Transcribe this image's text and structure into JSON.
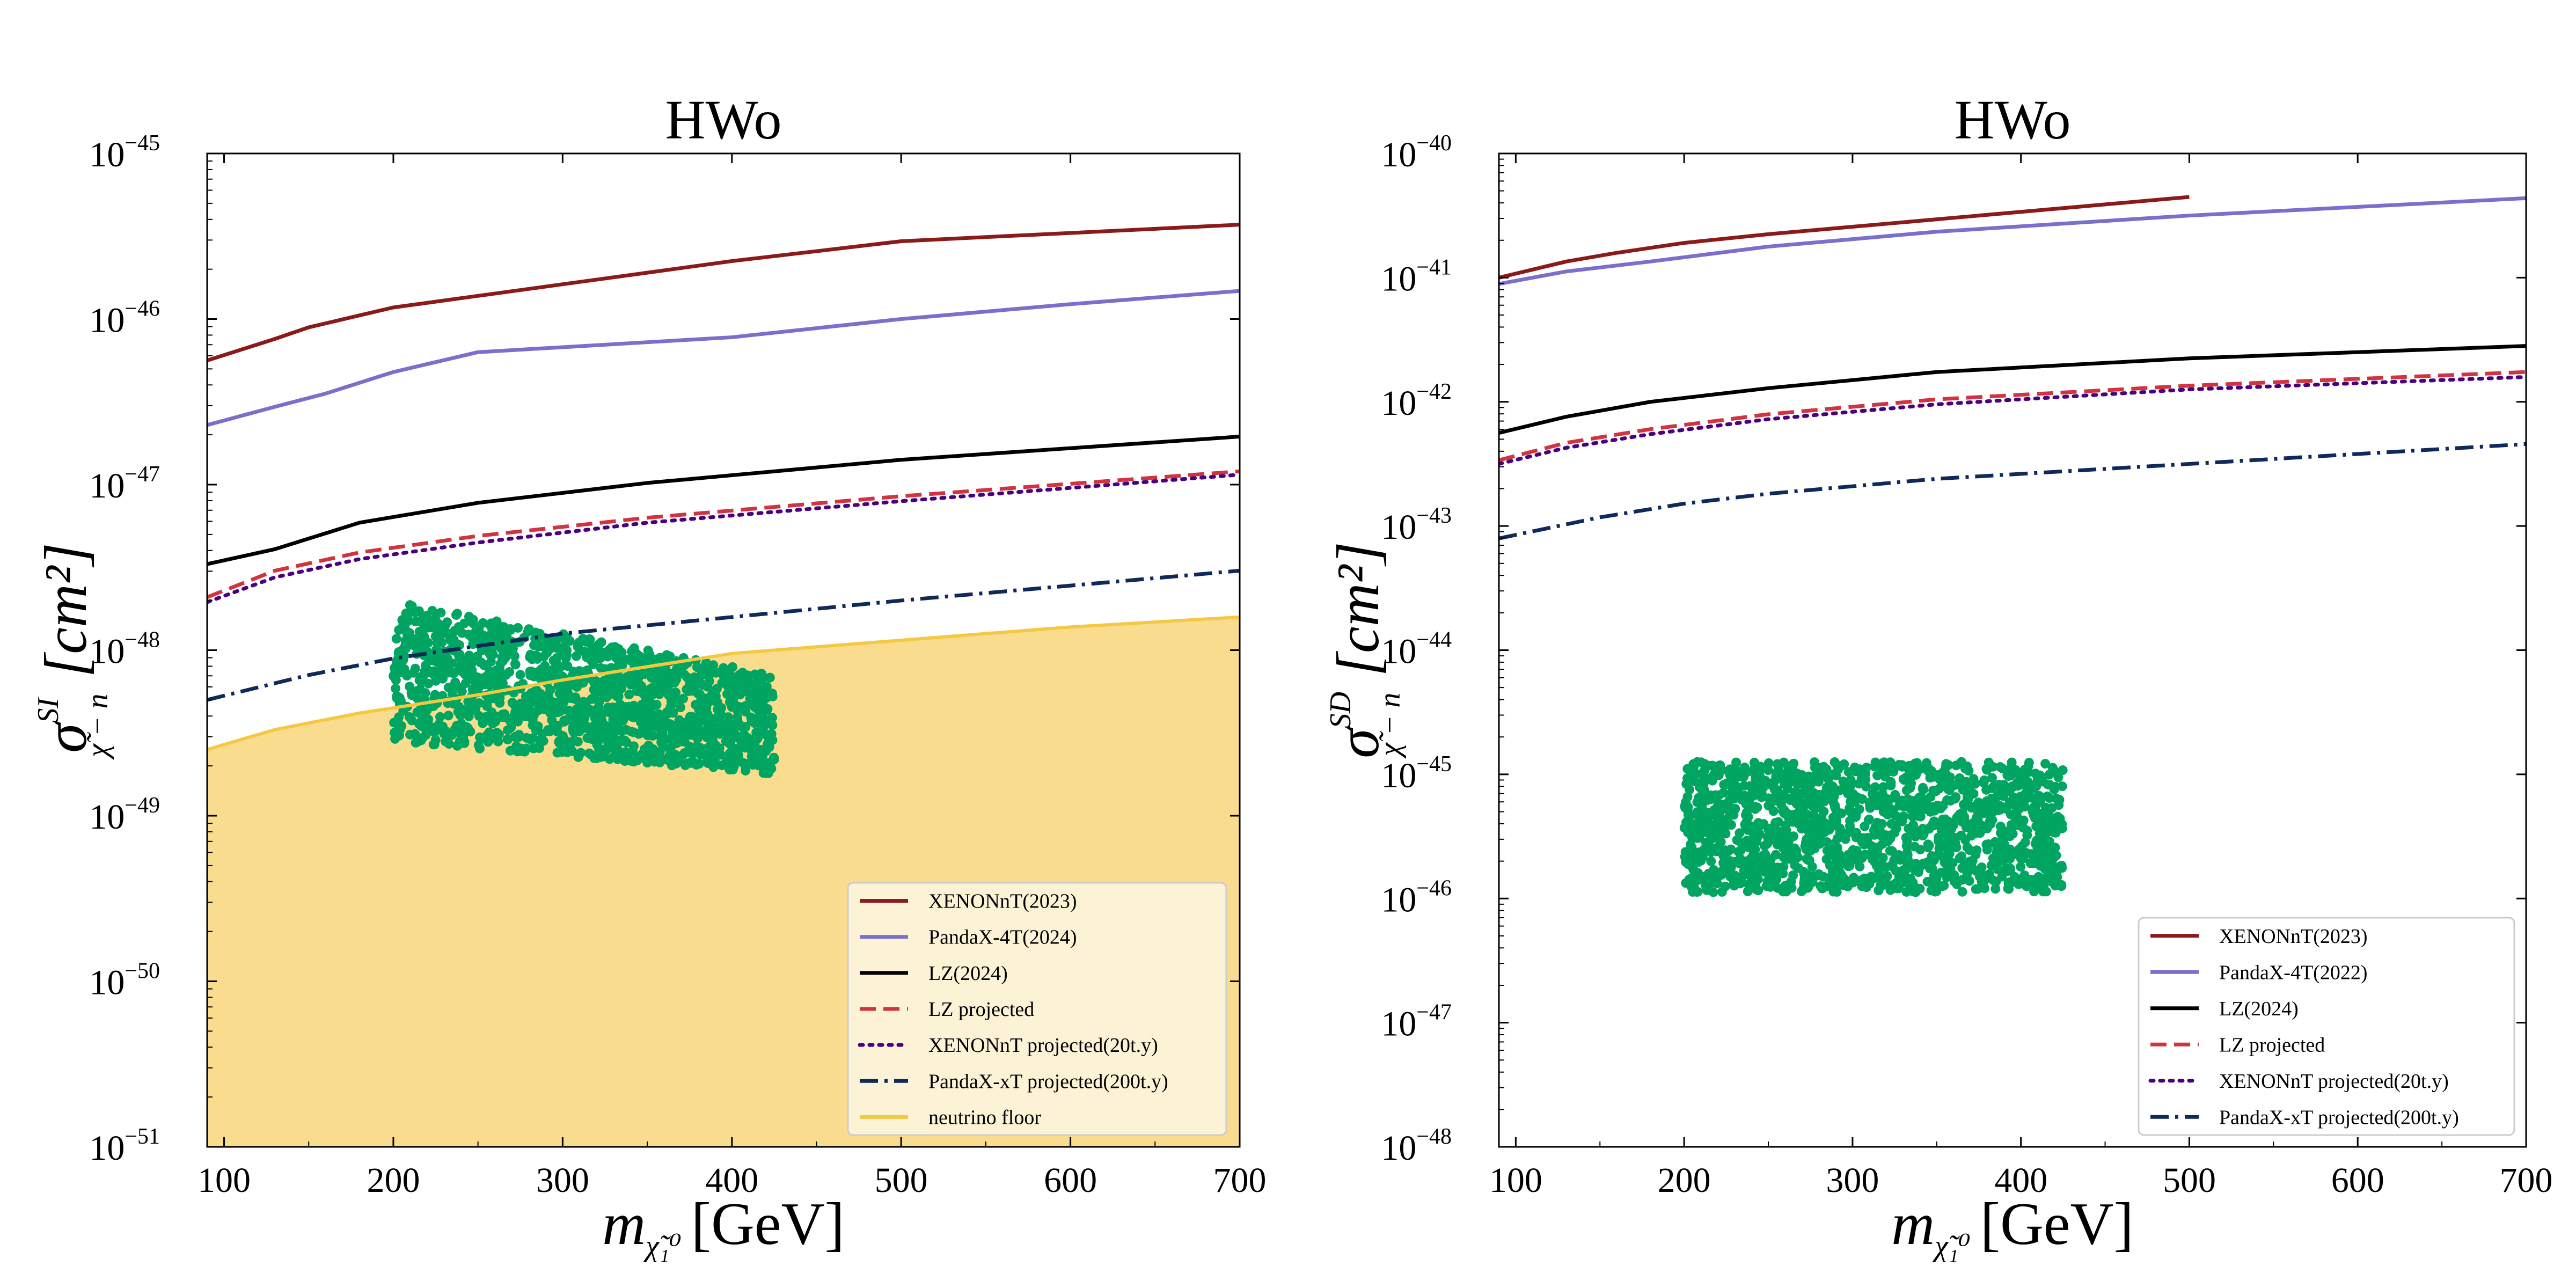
{
  "chart_data": [
    {
      "type": "line",
      "title": "HWo",
      "ylabel": {
        "symbol": "σ",
        "superscript": "SI",
        "subscript": "χ̃ − n",
        "unit": "[cm²]"
      },
      "xlabel": {
        "symbol": "m",
        "subscript": "χ̃₁⁰",
        "unit": "[GeV]"
      },
      "xlim": [
        90,
        700
      ],
      "x_ticks": [
        100,
        200,
        300,
        400,
        500,
        600,
        700
      ],
      "yscale": "log",
      "ylim_exp": [
        -51,
        -45
      ],
      "y_tick_exps": [
        -51,
        -50,
        -49,
        -48,
        -47,
        -46,
        -45
      ],
      "y_tick_labels": [
        "10",
        "10",
        "10",
        "10",
        "10",
        "10",
        "10"
      ],
      "y_tick_exp_labels": [
        "−51",
        "−50",
        "−49",
        "−48",
        "−47",
        "−46",
        "−45"
      ],
      "legend_position": "lower-right",
      "series": [
        {
          "name": "XENONnT(2023)",
          "color": "#8b1a1a",
          "style": "solid",
          "x": [
            90,
            130,
            150,
            200,
            250,
            300,
            350,
            400,
            500,
            600,
            700
          ],
          "y_exp": [
            -46.25,
            -46.12,
            -46.05,
            -45.93,
            -45.86,
            -45.79,
            -45.72,
            -45.65,
            -45.53,
            -45.48,
            -45.43
          ]
        },
        {
          "name": "PandaX-4T(2024)",
          "color": "#7b6fcc",
          "style": "solid",
          "x": [
            90,
            130,
            160,
            200,
            250,
            300,
            350,
            400,
            500,
            600,
            700
          ],
          "y_exp": [
            -46.64,
            -46.53,
            -46.45,
            -46.32,
            -46.2,
            -46.17,
            -46.14,
            -46.11,
            -46.0,
            -45.91,
            -45.83
          ]
        },
        {
          "name": "LZ(2024)",
          "color": "#000000",
          "style": "solid",
          "x": [
            90,
            130,
            180,
            250,
            350,
            500,
            700
          ],
          "y_exp": [
            -47.48,
            -47.39,
            -47.23,
            -47.11,
            -46.99,
            -46.85,
            -46.71
          ]
        },
        {
          "name": "LZ projected",
          "color": "#d1343f",
          "style": "dashed",
          "x": [
            90,
            130,
            180,
            250,
            350,
            500,
            700
          ],
          "y_exp": [
            -47.68,
            -47.52,
            -47.41,
            -47.31,
            -47.2,
            -47.07,
            -46.92
          ]
        },
        {
          "name": "XENONnT projected(20t.y)",
          "color": "#4b0082",
          "style": "dotted",
          "x": [
            90,
            130,
            180,
            250,
            350,
            500,
            700
          ],
          "y_exp": [
            -47.71,
            -47.56,
            -47.45,
            -47.35,
            -47.23,
            -47.1,
            -46.94
          ]
        },
        {
          "name": "PandaX-xT projected(200t.y)",
          "color": "#0f2a5a",
          "style": "dashdot",
          "x": [
            90,
            150,
            200,
            300,
            400,
            500,
            700
          ],
          "y_exp": [
            -48.3,
            -48.15,
            -48.05,
            -47.9,
            -47.8,
            -47.7,
            -47.52
          ]
        },
        {
          "name": "neutrino floor",
          "color": "#f5c842",
          "fill": "#f9dc8d",
          "style": "fill",
          "x": [
            90,
            130,
            180,
            250,
            300,
            350,
            400,
            500,
            600,
            700
          ],
          "y_exp": [
            -48.6,
            -48.48,
            -48.38,
            -48.27,
            -48.18,
            -48.1,
            -48.02,
            -47.94,
            -47.86,
            -47.8
          ]
        }
      ],
      "scatter": {
        "color": "#00a562",
        "x_range": [
          200,
          425
        ],
        "y_exp_range": [
          -48.8,
          -47.7
        ]
      }
    },
    {
      "type": "line",
      "title": "HWo",
      "ylabel": {
        "symbol": "σ",
        "superscript": "SD",
        "subscript": "χ̃ − n",
        "unit": "[cm²]"
      },
      "xlabel": {
        "symbol": "m",
        "subscript": "χ̃₁⁰",
        "unit": "[GeV]"
      },
      "xlim": [
        90,
        700
      ],
      "x_ticks": [
        100,
        200,
        300,
        400,
        500,
        600,
        700
      ],
      "yscale": "log",
      "ylim_exp": [
        -48,
        -40
      ],
      "y_tick_exps": [
        -48,
        -47,
        -46,
        -45,
        -44,
        -43,
        -42,
        -41,
        -40
      ],
      "y_tick_labels": [
        "10",
        "10",
        "10",
        "10",
        "10",
        "10",
        "10",
        "10",
        "10"
      ],
      "y_tick_exp_labels": [
        "−48",
        "−47",
        "−46",
        "−45",
        "−44",
        "−43",
        "−42",
        "−41",
        "−40"
      ],
      "legend_position": "lower-right",
      "series": [
        {
          "name": "XENONnT(2023)",
          "color": "#8b1a1a",
          "style": "solid",
          "x": [
            90,
            130,
            160,
            200,
            250,
            300,
            350,
            400,
            450,
            500
          ],
          "y_exp": [
            -41.0,
            -40.87,
            -40.8,
            -40.72,
            -40.65,
            -40.59,
            -40.53,
            -40.47,
            -40.41,
            -40.35
          ]
        },
        {
          "name": "PandaX-4T(2022)",
          "color": "#7b6fcc",
          "style": "solid",
          "x": [
            90,
            130,
            180,
            250,
            350,
            500,
            700
          ],
          "y_exp": [
            -41.05,
            -40.95,
            -40.87,
            -40.75,
            -40.63,
            -40.5,
            -40.36
          ]
        },
        {
          "name": "LZ(2024)",
          "color": "#000000",
          "style": "solid",
          "x": [
            90,
            130,
            180,
            250,
            350,
            500,
            700
          ],
          "y_exp": [
            -42.25,
            -42.12,
            -42.0,
            -41.89,
            -41.76,
            -41.65,
            -41.55
          ]
        },
        {
          "name": "LZ projected",
          "color": "#d1343f",
          "style": "dashed",
          "x": [
            90,
            130,
            180,
            250,
            350,
            500,
            700
          ],
          "y_exp": [
            -42.47,
            -42.33,
            -42.22,
            -42.1,
            -41.98,
            -41.87,
            -41.76
          ]
        },
        {
          "name": "XENONnT projected(20t.y)",
          "color": "#4b0082",
          "style": "dotted",
          "x": [
            90,
            130,
            180,
            250,
            350,
            500,
            700
          ],
          "y_exp": [
            -42.5,
            -42.37,
            -42.26,
            -42.14,
            -42.02,
            -41.9,
            -41.8
          ]
        },
        {
          "name": "PandaX-xT projected(200t.y)",
          "color": "#0f2a5a",
          "style": "dashdot",
          "x": [
            90,
            150,
            200,
            250,
            350,
            500,
            700
          ],
          "y_exp": [
            -43.1,
            -42.93,
            -42.82,
            -42.74,
            -42.62,
            -42.5,
            -42.34
          ]
        }
      ],
      "scatter": {
        "color": "#00a562",
        "x_range": [
          200,
          425
        ],
        "y_exp_range": [
          -45.95,
          -44.9
        ]
      }
    }
  ]
}
